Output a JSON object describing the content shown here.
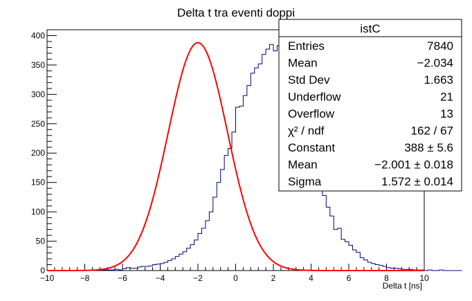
{
  "chart_data": {
    "type": "bar",
    "title": "Delta t tra eventi doppi",
    "xlabel": "Delta t [ns]",
    "ylabel": "",
    "xlim": [
      -10,
      10
    ],
    "ylim": [
      0,
      410
    ],
    "x_ticks": [
      -10,
      -8,
      -6,
      -4,
      -2,
      0,
      2,
      4,
      6,
      8,
      10
    ],
    "y_ticks": [
      0,
      50,
      100,
      150,
      200,
      250,
      300,
      350,
      400
    ],
    "grid": false,
    "bin_width": 0.2,
    "bin_start": -10,
    "series": [
      {
        "values": [
          0,
          0,
          0,
          0,
          0,
          0,
          0,
          0,
          0,
          0,
          0,
          0,
          0,
          1,
          1,
          1,
          1,
          1,
          2,
          1,
          3,
          5,
          4,
          4,
          6,
          7,
          7,
          8,
          10,
          11,
          12,
          14,
          17,
          20,
          24,
          28,
          32,
          38,
          44,
          52,
          63,
          72,
          85,
          100,
          125,
          150,
          172,
          196,
          208,
          236,
          278,
          280,
          298,
          315,
          336,
          345,
          352,
          368,
          377,
          385,
          374,
          383,
          386,
          378,
          370,
          335,
          320,
          327,
          284,
          230,
          216,
          195,
          152,
          128,
          108,
          93,
          70,
          72,
          53,
          49,
          43,
          35,
          31,
          22,
          18,
          14,
          12,
          10,
          9,
          7,
          5,
          4,
          4,
          3,
          2,
          2,
          2,
          1,
          1,
          1,
          0,
          1,
          0,
          0,
          1,
          0,
          0,
          0,
          0,
          0
        ]
      }
    ],
    "fit": {
      "type": "gaussian",
      "constant": 388,
      "mean": -2.001,
      "sigma": 1.572,
      "color": "#ff0000"
    },
    "line_color": "#00007f"
  },
  "stats_box": {
    "name": "istC",
    "rows": [
      {
        "label": "Entries",
        "value": "7840"
      },
      {
        "label": "Mean",
        "value": "−2.034"
      },
      {
        "label": "Std Dev",
        "value": "1.663"
      },
      {
        "label": "Underflow",
        "value": "21"
      },
      {
        "label": "Overflow",
        "value": "13"
      },
      {
        "label": "χ² / ndf",
        "value": "162 / 67"
      },
      {
        "label": "Constant",
        "value": "388 ± 5.6"
      },
      {
        "label": "Mean",
        "value": "−2.001 ± 0.018"
      },
      {
        "label": "Sigma",
        "value": "1.572 ± 0.014"
      }
    ]
  }
}
